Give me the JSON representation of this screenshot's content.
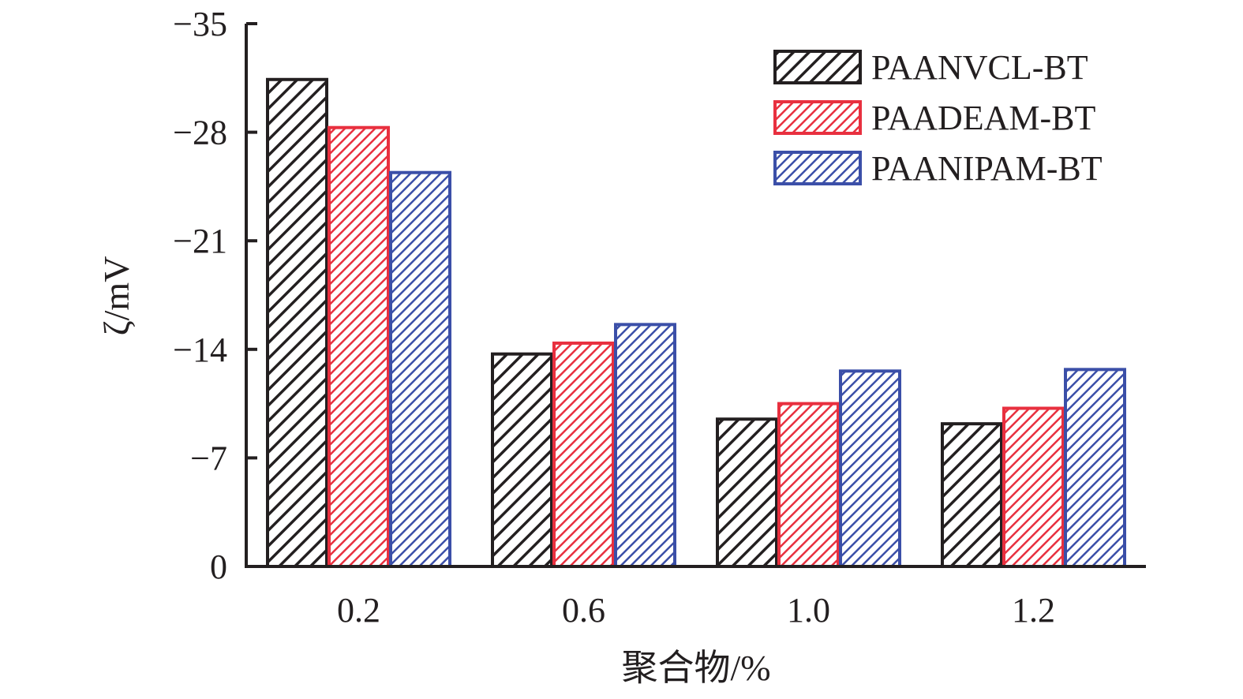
{
  "chart_data": {
    "type": "bar",
    "xlabel": "聚合物/%",
    "ylabel": "ζ/mV",
    "categories": [
      "0.2",
      "0.6",
      "1.0",
      "1.2"
    ],
    "y_ticks": [
      "0",
      "−7",
      "−14",
      "−21",
      "−28",
      "−35"
    ],
    "y_tick_values": [
      0,
      -7,
      -14,
      -21,
      -28,
      -35
    ],
    "ylim": [
      0,
      -35
    ],
    "y_axis_inverted": true,
    "grid": false,
    "legend_position": "top-right",
    "series": [
      {
        "name": "PAANVCL-BT",
        "values": [
          -31.4,
          -13.7,
          -9.5,
          -9.2
        ],
        "color": "#231f20",
        "pattern": "wide diagonal hatch"
      },
      {
        "name": "PAADEAM-BT",
        "values": [
          -28.3,
          -14.4,
          -10.5,
          -10.2
        ],
        "color": "#e8303f",
        "pattern": "fine diagonal hatch"
      },
      {
        "name": "PAANIPAM-BT",
        "values": [
          -25.4,
          -15.6,
          -12.6,
          -12.7
        ],
        "color": "#3b4fa8",
        "pattern": "fine diagonal hatch"
      }
    ]
  }
}
